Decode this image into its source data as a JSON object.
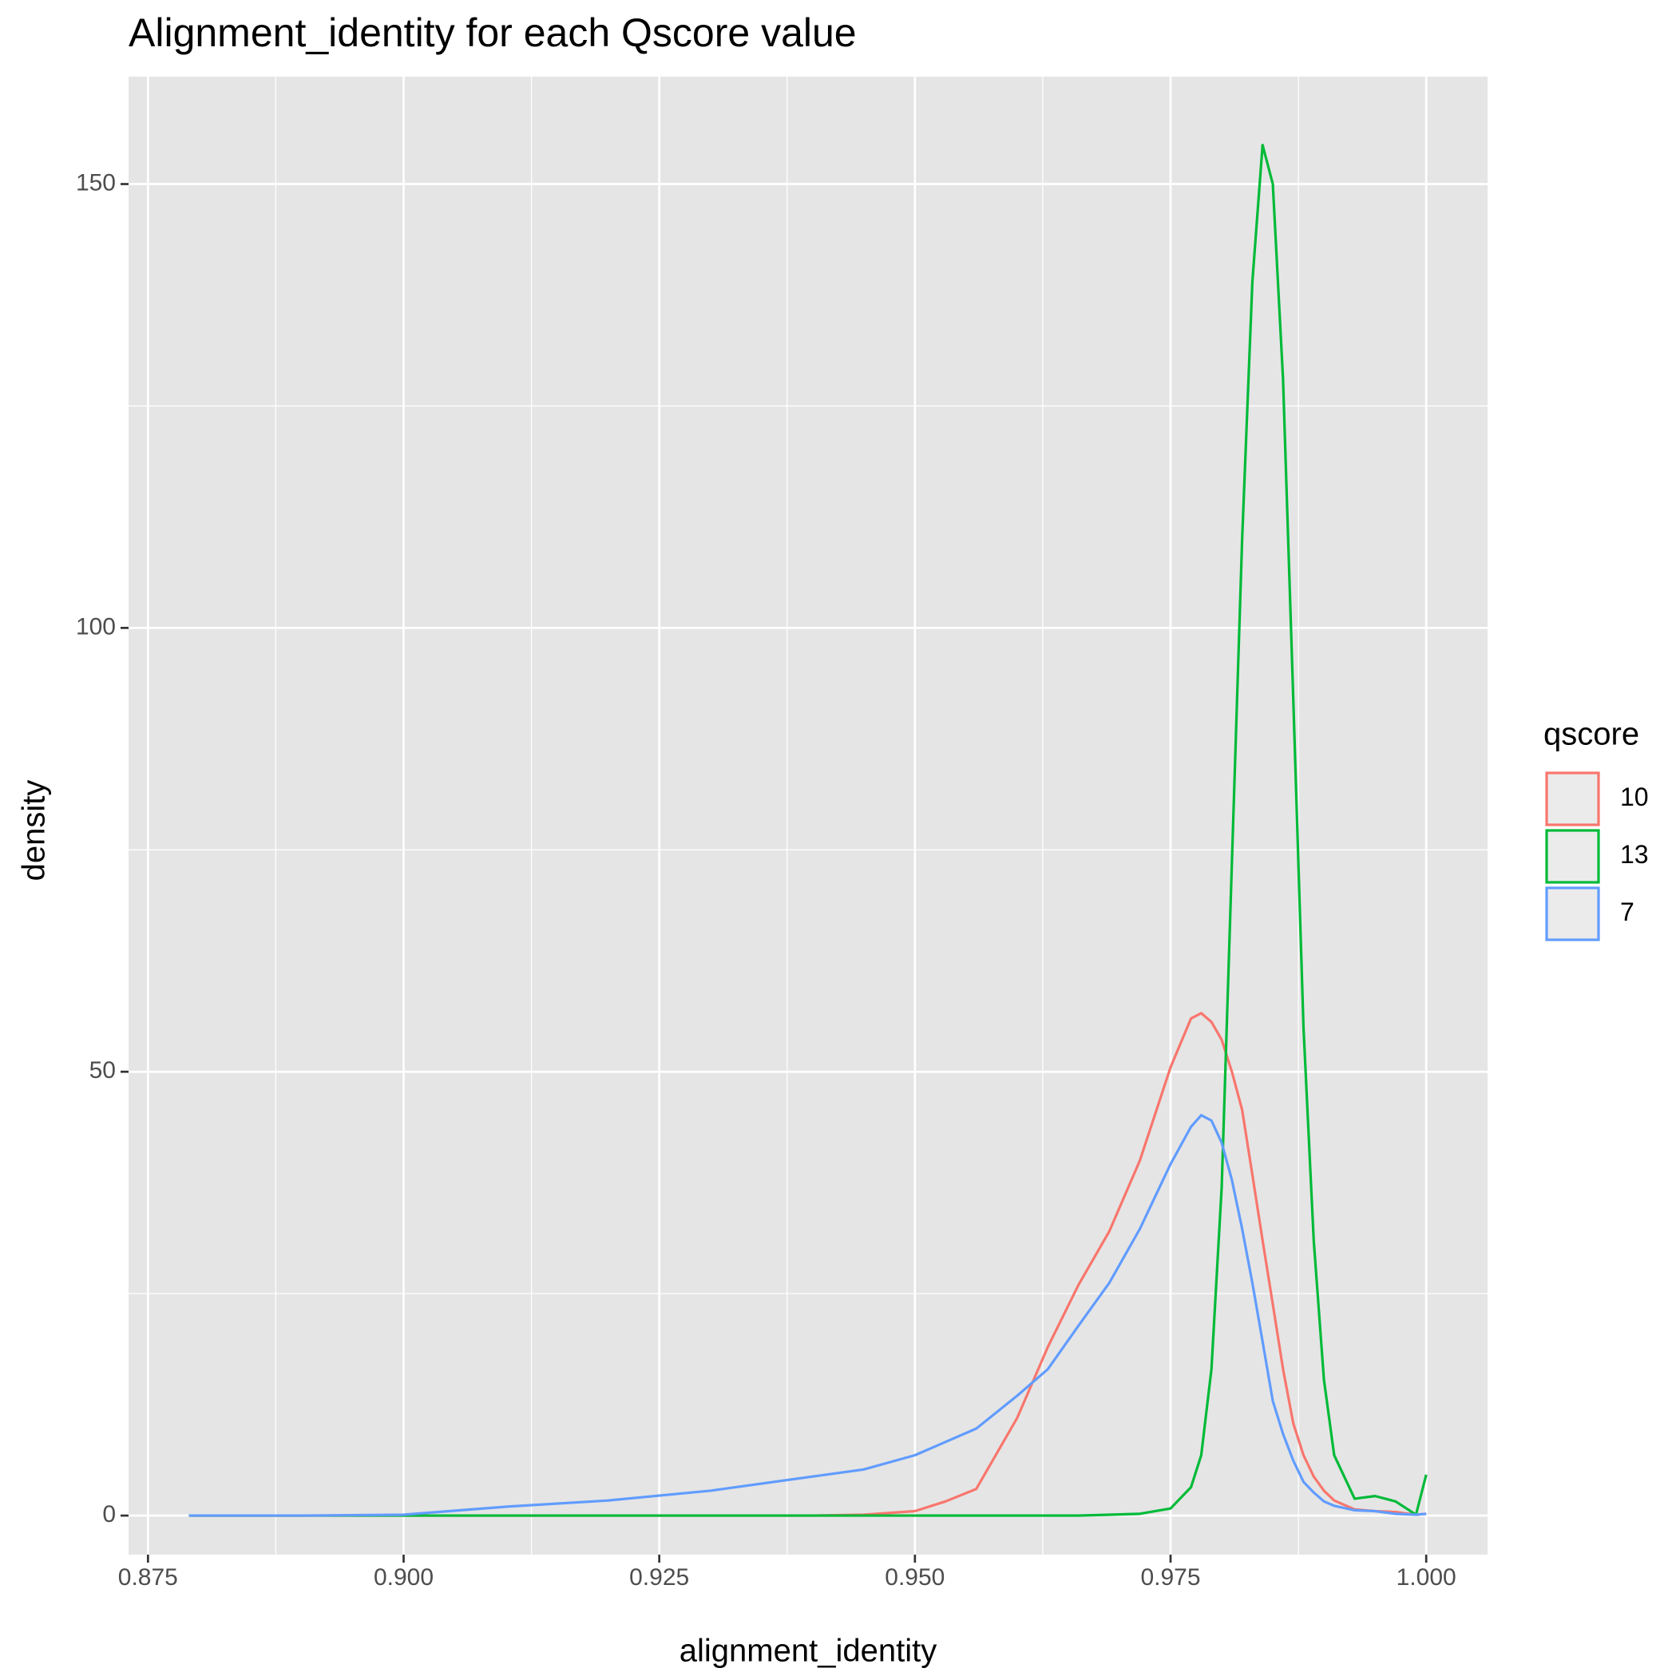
{
  "chart_data": {
    "type": "line",
    "title": "Alignment_identity for each Qscore value",
    "x_label": "alignment_identity",
    "y_label": "density",
    "legend_title": "qscore",
    "legend_position": "right",
    "grid": true,
    "background": "#e5e5e5",
    "xlim": [
      0.8731,
      1.006
    ],
    "ylim": [
      -4.4,
      162.1
    ],
    "xticks": [
      {
        "value": 0.875,
        "label": "0.875"
      },
      {
        "value": 0.9,
        "label": "0.900"
      },
      {
        "value": 0.925,
        "label": "0.925"
      },
      {
        "value": 0.95,
        "label": "0.950"
      },
      {
        "value": 0.975,
        "label": "0.975"
      },
      {
        "value": 1.0,
        "label": "1.000"
      }
    ],
    "yticks": [
      0,
      50,
      100,
      150
    ],
    "xminor_ticks": [
      0.8875,
      0.9125,
      0.9375,
      0.9625,
      0.9875
    ],
    "yminor_ticks": [
      25,
      75,
      125
    ],
    "x": [
      0.879,
      0.89,
      0.9,
      0.91,
      0.92,
      0.93,
      0.94,
      0.945,
      0.95,
      0.953,
      0.956,
      0.96,
      0.963,
      0.966,
      0.969,
      0.972,
      0.975,
      0.977,
      0.978,
      0.979,
      0.98,
      0.981,
      0.982,
      0.983,
      0.984,
      0.985,
      0.986,
      0.987,
      0.988,
      0.989,
      0.99,
      0.991,
      0.993,
      0.995,
      0.997,
      0.999,
      1.0
    ],
    "series": [
      {
        "name": "10",
        "color": "#F8766D",
        "values": [
          0,
          0,
          0,
          0,
          0,
          0,
          0,
          0.1,
          0.5,
          1.6,
          3,
          11,
          19,
          26,
          32,
          40,
          50.5,
          56,
          56.6,
          55.6,
          53.6,
          50,
          45.7,
          38.4,
          31,
          23.8,
          16.5,
          10.4,
          6.8,
          4.4,
          2.8,
          1.7,
          0.7,
          0.5,
          0.4,
          0.1,
          0.2
        ]
      },
      {
        "name": "13",
        "color": "#00BA38",
        "values": [
          0,
          0,
          0,
          0,
          0,
          0,
          0,
          0,
          0,
          0,
          0,
          0,
          0,
          0,
          0.1,
          0.2,
          0.8,
          3.2,
          6.8,
          16.5,
          37,
          73.6,
          110,
          139,
          154.4,
          150,
          128,
          92,
          55,
          31,
          15.3,
          6.8,
          1.9,
          2.2,
          1.6,
          0.1,
          4.6
        ]
      },
      {
        "name": "7",
        "color": "#619CFF",
        "values": [
          0,
          0,
          0.1,
          1.0,
          1.7,
          2.8,
          4.4,
          5.2,
          6.8,
          8.3,
          9.8,
          13.5,
          16.5,
          21.4,
          26.2,
          32.3,
          39.6,
          43.8,
          45.1,
          44.5,
          42,
          37.8,
          32.3,
          26.2,
          19.6,
          12.9,
          9.2,
          6.2,
          3.8,
          2.6,
          1.6,
          1.1,
          0.6,
          0.5,
          0.2,
          0.1,
          0.2
        ]
      }
    ]
  }
}
